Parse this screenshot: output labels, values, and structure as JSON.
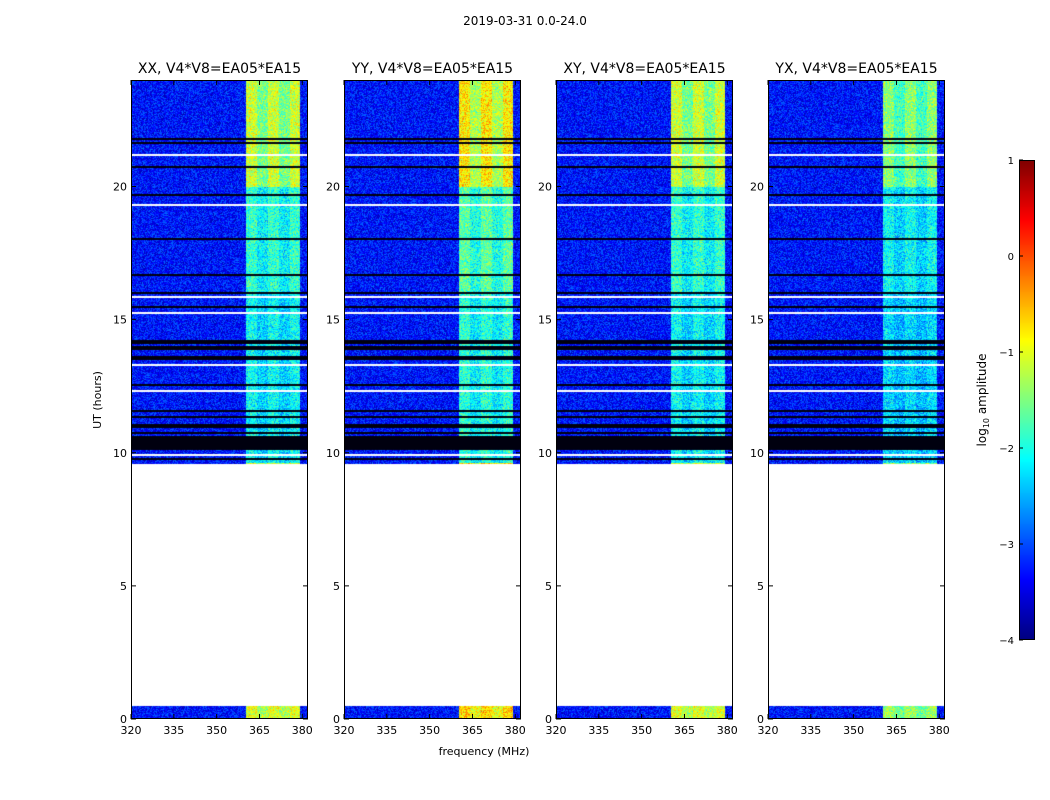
{
  "figure": {
    "suptitle": "2019-03-31 0.0-24.0"
  },
  "chart_data": {
    "type": "heatmap",
    "title": "2019-03-31 0.0-24.0",
    "xlabel": "frequency (MHz)",
    "ylabel": "UT (hours)",
    "xlim": [
      320,
      382
    ],
    "ylim": [
      0,
      24
    ],
    "xticks": [
      320,
      335,
      350,
      365,
      380
    ],
    "yticks": [
      0,
      5,
      10,
      15,
      20
    ],
    "panels": [
      {
        "title": "XX, V4*V8=EA05*EA15",
        "polarization": "XX",
        "strength": 1.0
      },
      {
        "title": "YY, V4*V8=EA05*EA15",
        "polarization": "YY",
        "strength": 1.15
      },
      {
        "title": "XY, V4*V8=EA05*EA15",
        "polarization": "XY",
        "strength": 1.0
      },
      {
        "title": "YX, V4*V8=EA05*EA15",
        "polarization": "YX",
        "strength": 0.85
      }
    ],
    "data_time_ranges_hours": [
      [
        0.0,
        0.5
      ],
      [
        9.6,
        24.0
      ]
    ],
    "flagged_bands_hours": [
      [
        15.0,
        16.0
      ],
      [
        10.1,
        11.6
      ],
      [
        13.5,
        14.2
      ]
    ],
    "rfi_frequency_range_mhz": [
      360,
      379
    ],
    "colorbar": {
      "label": "log10 amplitude",
      "label_main": "log",
      "label_sub": "10",
      "label_tail": " amplitude",
      "range": [
        -4,
        1
      ],
      "ticks": [
        -4,
        -3,
        -2,
        -1,
        0,
        1
      ],
      "tick_labels": [
        "−4",
        "−3",
        "−2",
        "−1",
        "0",
        "1"
      ],
      "colormap": "jet"
    }
  }
}
